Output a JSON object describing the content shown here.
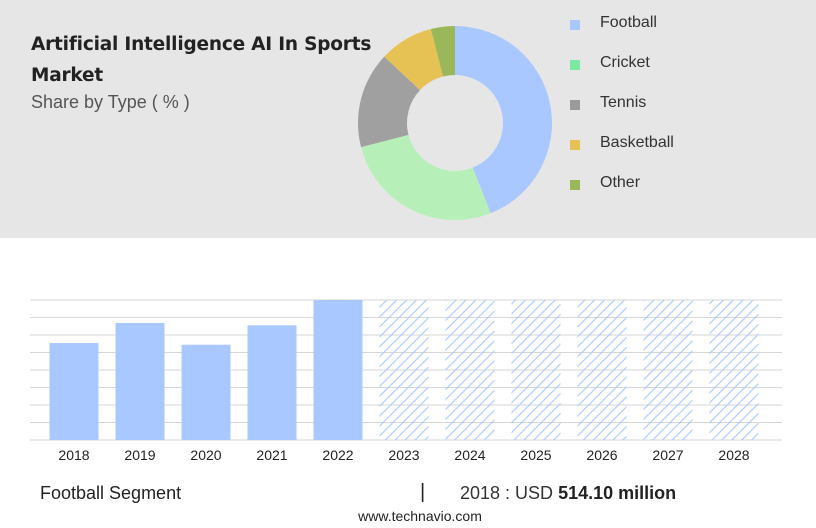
{
  "header": {
    "title": "Artificial Intelligence AI In Sports Market",
    "subtitle": "Share by Type ( % )"
  },
  "chart_data": [
    {
      "type": "pie",
      "variant": "donut",
      "labels": [
        "Football",
        "Cricket",
        "Tennis",
        "Basketball",
        "Other"
      ],
      "values": [
        44,
        27,
        16,
        9,
        4
      ],
      "colors": [
        "#a8c8ff",
        "#b6f0b8",
        "#a0a0a0",
        "#e6c255",
        "#9ab85a"
      ],
      "legend_colors": [
        "#a8c8ff",
        "#7de8a0",
        "#9a9a9a",
        "#e6c255",
        "#9ab85a"
      ],
      "legend": "right"
    },
    {
      "type": "bar",
      "categories": [
        "2018",
        "2019",
        "2020",
        "2021",
        "2022",
        "2023",
        "2024",
        "2025",
        "2026",
        "2027",
        "2028"
      ],
      "values": [
        514.1,
        620,
        505,
        608,
        742,
        742,
        742,
        742,
        742,
        742,
        742
      ],
      "forecast_from": "2023",
      "ylim": [
        0,
        742
      ],
      "grid": true,
      "color": "#a8c8ff",
      "hatch_color": "#a8c8ff"
    }
  ],
  "footer": {
    "segment_label": "Football Segment",
    "separator": "|",
    "value_prefix": "2018 : USD",
    "value_text": "514.10 million"
  },
  "source": "www.technavio.com"
}
